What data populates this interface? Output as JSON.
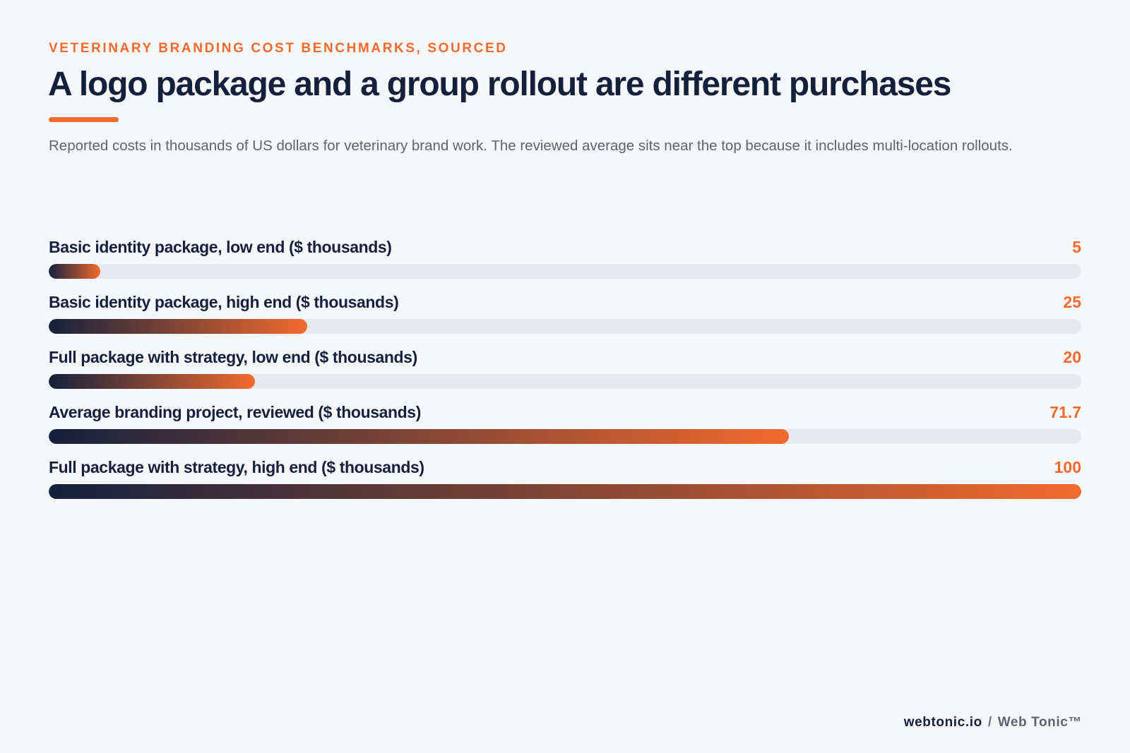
{
  "eyebrow": "VETERINARY BRANDING COST BENCHMARKS, SOURCED",
  "title": "A logo package and a group rollout are different purchases",
  "subtitle": "Reported costs in thousands of US dollars for veterinary brand work. The reviewed average sits near the top because it includes multi-location rollouts.",
  "footer": {
    "site": "webtonic.io",
    "separator": "/",
    "brand": "Web Tonic™"
  },
  "colors": {
    "accent": "#f26a2e",
    "navy": "#14213d",
    "track": "#e7e9ee"
  },
  "chart_data": {
    "type": "bar",
    "orientation": "horizontal",
    "xlim": [
      0,
      100
    ],
    "grid": false,
    "categories": [
      "Basic identity package, low end ($ thousands)",
      "Basic identity package, high end ($ thousands)",
      "Full package with strategy, low end ($ thousands)",
      "Average branding project, reviewed ($ thousands)",
      "Full package with strategy, high end ($ thousands)"
    ],
    "values": [
      5,
      25,
      20,
      71.7,
      100
    ],
    "value_labels": [
      "5",
      "25",
      "20",
      "71.7",
      "100"
    ]
  }
}
